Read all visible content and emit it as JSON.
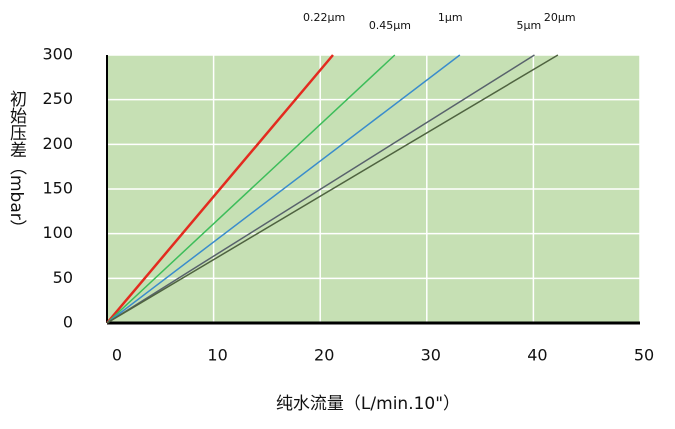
{
  "chart_data": {
    "type": "line",
    "x_label": "纯水流量（L/min.10\"）",
    "y_label": "初始压差（mbar）",
    "series": [
      {
        "name": "0.22μm",
        "color": "#e32b1f",
        "x": [
          0,
          21.2
        ],
        "values": [
          0,
          300
        ]
      },
      {
        "name": "0.45μm",
        "color": "#3dbd5a",
        "x": [
          0,
          27.0
        ],
        "values": [
          0,
          300
        ]
      },
      {
        "name": "1μm",
        "color": "#3a8ccc",
        "x": [
          0,
          33.1
        ],
        "values": [
          0,
          300
        ]
      },
      {
        "name": "5μm",
        "color": "#58626c",
        "x": [
          0,
          40.1
        ],
        "values": [
          0,
          300
        ]
      },
      {
        "name": "20μm",
        "color": "#4f6340",
        "x": [
          0,
          42.3
        ],
        "values": [
          0,
          300
        ]
      }
    ],
    "xlim": [
      0,
      50
    ],
    "xticks": [
      0,
      10,
      20,
      30,
      40,
      50
    ],
    "ylim": [
      0,
      300
    ],
    "yticks": [
      0,
      50,
      100,
      150,
      200,
      250,
      300
    ],
    "grid": true,
    "background": "#c6e0b4"
  }
}
